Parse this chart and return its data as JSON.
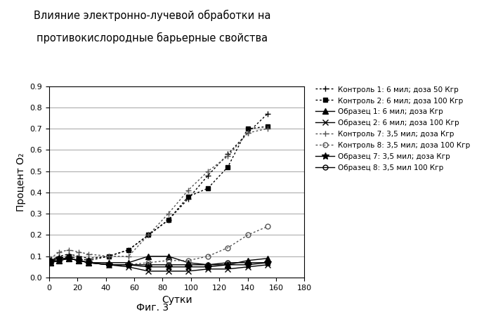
{
  "title_line1": "Влияние электронно-лучевой обработки на",
  "title_line2": "противокислородные барьерные свойства",
  "xlabel": "Сутки",
  "ylabel": "Процент O₂",
  "caption": "Фиг. 3",
  "xlim": [
    0,
    180
  ],
  "ylim": [
    0,
    0.9
  ],
  "xticks": [
    0,
    20,
    40,
    60,
    80,
    100,
    120,
    140,
    160,
    180
  ],
  "yticks": [
    0,
    0.1,
    0.2,
    0.3,
    0.4,
    0.5,
    0.6,
    0.7,
    0.8,
    0.9
  ],
  "series": [
    {
      "label": "Контроль 1: 6 мил; доза 50 Кгр",
      "x": [
        1,
        7,
        14,
        21,
        28,
        42,
        56,
        70,
        84,
        98,
        112,
        126,
        140,
        154
      ],
      "y": [
        0.08,
        0.1,
        0.11,
        0.1,
        0.09,
        0.1,
        0.13,
        0.2,
        0.27,
        0.37,
        0.48,
        0.58,
        0.68,
        0.77
      ],
      "linestyle": "dotted",
      "marker": "+",
      "color": "#000000",
      "linewidth": 1.0,
      "markersize": 6,
      "markerfacecolor": "black",
      "markeredgecolor": "black"
    },
    {
      "label": "Контроль 2: 6 мил; доза 100 Кгр",
      "x": [
        1,
        7,
        14,
        21,
        28,
        42,
        56,
        70,
        84,
        98,
        112,
        126,
        140,
        154
      ],
      "y": [
        0.07,
        0.09,
        0.1,
        0.09,
        0.08,
        0.1,
        0.13,
        0.2,
        0.27,
        0.38,
        0.42,
        0.52,
        0.7,
        0.71
      ],
      "linestyle": "dotted",
      "marker": "s",
      "color": "#000000",
      "linewidth": 1.0,
      "markersize": 5,
      "markerfacecolor": "black",
      "markeredgecolor": "black"
    },
    {
      "label": "Образец 1: 6 мил; доза Кгр",
      "x": [
        1,
        7,
        14,
        21,
        28,
        42,
        56,
        70,
        84,
        98,
        112,
        126,
        140,
        154
      ],
      "y": [
        0.07,
        0.08,
        0.09,
        0.08,
        0.07,
        0.07,
        0.07,
        0.1,
        0.1,
        0.07,
        0.06,
        0.06,
        0.08,
        0.09
      ],
      "linestyle": "solid",
      "marker": "^",
      "color": "#000000",
      "linewidth": 1.0,
      "markersize": 6,
      "markerfacecolor": "black",
      "markeredgecolor": "black"
    },
    {
      "label": "Образец 2: 6 мил; доза 100 Кгр",
      "x": [
        1,
        7,
        14,
        21,
        28,
        42,
        56,
        70,
        84,
        98,
        112,
        126,
        140,
        154
      ],
      "y": [
        0.07,
        0.08,
        0.09,
        0.08,
        0.07,
        0.06,
        0.05,
        0.03,
        0.03,
        0.03,
        0.04,
        0.04,
        0.05,
        0.06
      ],
      "linestyle": "solid",
      "marker": "x",
      "color": "#000000",
      "linewidth": 1.0,
      "markersize": 6,
      "markerfacecolor": "black",
      "markeredgecolor": "black"
    },
    {
      "label": "Контроль 7: 3,5 мил; доза Кгр",
      "x": [
        1,
        7,
        14,
        21,
        28,
        42,
        56,
        70,
        84,
        98,
        112,
        126,
        140,
        154
      ],
      "y": [
        0.09,
        0.12,
        0.13,
        0.12,
        0.11,
        0.1,
        0.1,
        0.2,
        0.3,
        0.41,
        0.5,
        0.57,
        0.68,
        0.7
      ],
      "linestyle": "dotted",
      "marker": "+",
      "color": "#555555",
      "linewidth": 1.0,
      "markersize": 6,
      "markerfacecolor": "#555555",
      "markeredgecolor": "#555555"
    },
    {
      "label": "Контроль 8: 3,5 мил; доза 100 Кгр",
      "x": [
        1,
        7,
        14,
        21,
        28,
        42,
        56,
        70,
        84,
        98,
        112,
        126,
        140,
        154
      ],
      "y": [
        0.07,
        0.08,
        0.09,
        0.08,
        0.07,
        0.06,
        0.06,
        0.07,
        0.08,
        0.08,
        0.1,
        0.14,
        0.2,
        0.24
      ],
      "linestyle": "dotted",
      "marker": "o",
      "color": "#555555",
      "linewidth": 1.0,
      "markersize": 5,
      "markerfacecolor": "none",
      "markeredgecolor": "#555555"
    },
    {
      "label": "Образец 7: 3,5 мил; доза Кгр",
      "x": [
        1,
        7,
        14,
        21,
        28,
        42,
        56,
        70,
        84,
        98,
        112,
        126,
        140,
        154
      ],
      "y": [
        0.08,
        0.09,
        0.09,
        0.08,
        0.07,
        0.06,
        0.06,
        0.05,
        0.05,
        0.05,
        0.05,
        0.06,
        0.06,
        0.07
      ],
      "linestyle": "solid",
      "marker": "*",
      "color": "#000000",
      "linewidth": 1.0,
      "markersize": 7,
      "markerfacecolor": "black",
      "markeredgecolor": "black"
    },
    {
      "label": "Образец 8: 3,5 мил 100 Кгр",
      "x": [
        1,
        7,
        14,
        21,
        28,
        42,
        56,
        70,
        84,
        98,
        112,
        126,
        140,
        154
      ],
      "y": [
        0.07,
        0.08,
        0.09,
        0.08,
        0.07,
        0.06,
        0.06,
        0.06,
        0.06,
        0.06,
        0.06,
        0.07,
        0.07,
        0.07
      ],
      "linestyle": "solid",
      "marker": "o",
      "color": "#000000",
      "linewidth": 1.0,
      "markersize": 5,
      "markerfacecolor": "none",
      "markeredgecolor": "black"
    }
  ]
}
